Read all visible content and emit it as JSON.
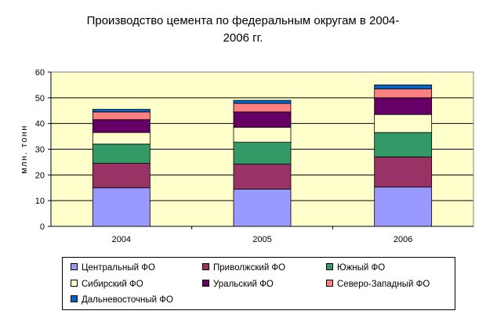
{
  "chart_data": {
    "type": "bar",
    "stacked": true,
    "title_lines": [
      "Производство цемента по федеральным округам в 2004-",
      "2006 гг."
    ],
    "xlabel": "",
    "ylabel": "млн. тонн",
    "ylim": [
      0,
      60
    ],
    "yticks": [
      "0",
      "10",
      "20",
      "30",
      "40",
      "50",
      "60"
    ],
    "grid": true,
    "legend_position": "bottom",
    "categories": [
      "2004",
      "2005",
      "2006"
    ],
    "series": [
      {
        "name": "Центральный ФО",
        "color": "#9999FF",
        "values": [
          15.0,
          14.5,
          15.3
        ]
      },
      {
        "name": "Приволжский ФО",
        "color": "#993366",
        "values": [
          9.5,
          9.7,
          11.7
        ]
      },
      {
        "name": "Южный ФО",
        "color": "#339966",
        "values": [
          7.5,
          8.5,
          9.5
        ]
      },
      {
        "name": "Сибирский ФО",
        "color": "#FFFFCC",
        "values": [
          4.5,
          5.8,
          7.0
        ]
      },
      {
        "name": "Уральский ФО",
        "color": "#660066",
        "values": [
          5.0,
          6.0,
          6.5
        ]
      },
      {
        "name": "Северо-Западный ФО",
        "color": "#FF8080",
        "values": [
          3.0,
          3.3,
          3.5
        ]
      },
      {
        "name": "Дальневосточный ФО",
        "color": "#0066CC",
        "values": [
          1.0,
          1.2,
          1.5
        ]
      }
    ],
    "plot_background": "#FFFFCC"
  }
}
